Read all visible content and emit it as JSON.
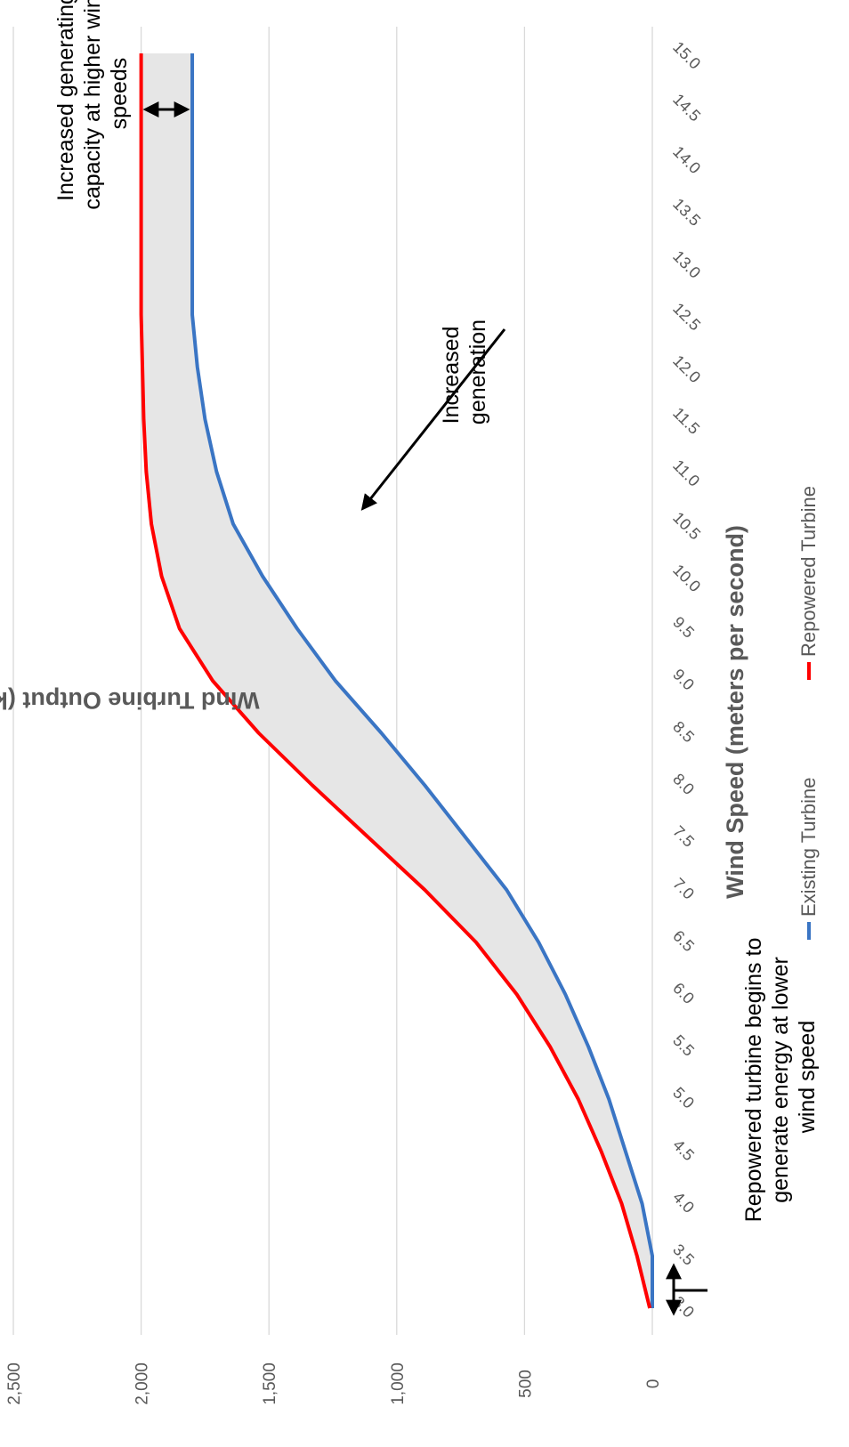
{
  "chart_data": {
    "type": "area",
    "xlabel": "Wind Speed (meters per second)",
    "ylabel": "Wind Turbine Output (kilowatts)",
    "ylim": [
      0,
      2500
    ],
    "yticks": [
      "0",
      "500",
      "1,000",
      "1,500",
      "2,000",
      "2,500"
    ],
    "grid": true,
    "legend_position": "bottom",
    "x": [
      "3.0",
      "3.5",
      "4.0",
      "4.5",
      "5.0",
      "5.5",
      "6.0",
      "6.5",
      "7.0",
      "7.5",
      "8.0",
      "8.5",
      "9.0",
      "9.5",
      "10.0",
      "10.5",
      "11.0",
      "11.5",
      "12.0",
      "12.5",
      "13.0",
      "13.5",
      "14.0",
      "14.5",
      "15.0"
    ],
    "series": [
      {
        "name": "Existing Turbine",
        "color": "#3a75c4",
        "values": [
          0,
          0,
          40,
          105,
          170,
          250,
          340,
          445,
          570,
          730,
          890,
          1060,
          1240,
          1390,
          1525,
          1640,
          1705,
          1750,
          1780,
          1800,
          1800,
          1800,
          1800,
          1800,
          1800
        ]
      },
      {
        "name": "Repowered Turbine",
        "color": "#ff0000",
        "values": [
          10,
          60,
          120,
          200,
          290,
          400,
          530,
          690,
          890,
          1110,
          1330,
          1540,
          1720,
          1850,
          1920,
          1960,
          1980,
          1990,
          1995,
          2000,
          2000,
          2000,
          2000,
          2000,
          2000
        ]
      }
    ],
    "fill_between": {
      "color": "#e6e6e6"
    },
    "annotations": [
      {
        "lines": [
          "Repowered turbine begins to",
          "generate energy at lower",
          "wind speed"
        ]
      },
      {
        "lines": [
          "Increased",
          "generation"
        ]
      },
      {
        "lines": [
          "Increased generating",
          "capacity at higher wind",
          "speeds"
        ]
      }
    ]
  }
}
